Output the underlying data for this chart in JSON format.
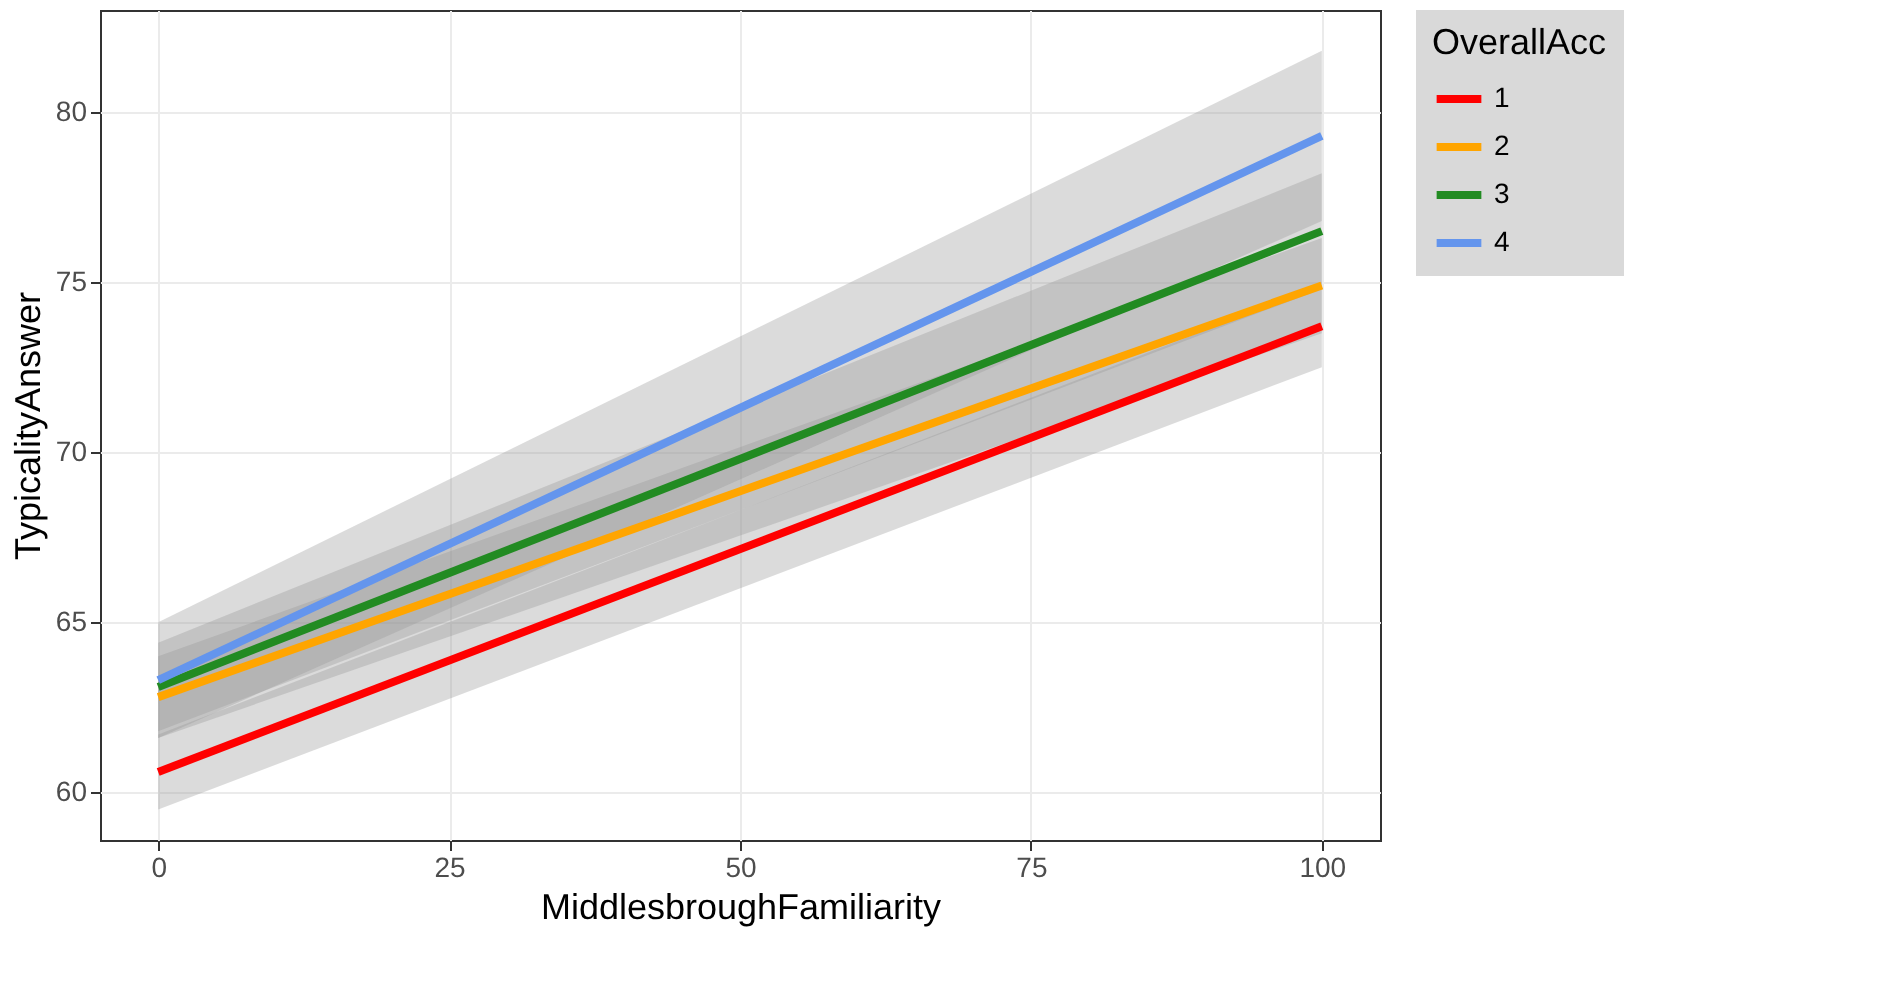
{
  "chart_data": {
    "type": "line",
    "xlabel": "MiddlesbroughFamiliarity",
    "ylabel": "TypicalityAnswer",
    "legend_title": "OverallAcc",
    "x": [
      0,
      100
    ],
    "xlim": [
      -5,
      105
    ],
    "xticks": [
      0,
      25,
      50,
      75,
      100
    ],
    "ylim": [
      58.6,
      83
    ],
    "yticks": [
      60,
      65,
      70,
      75,
      80
    ],
    "grid": true,
    "legend": "right",
    "series": [
      {
        "name": "1",
        "color": "#ff0000",
        "values": [
          60.6,
          73.7
        ],
        "lower": [
          59.5,
          72.5
        ],
        "upper": [
          61.7,
          74.9
        ]
      },
      {
        "name": "2",
        "color": "#ffa500",
        "values": [
          62.8,
          74.9
        ],
        "lower": [
          61.6,
          73.5
        ],
        "upper": [
          64.0,
          76.3
        ]
      },
      {
        "name": "3",
        "color": "#228b22",
        "values": [
          63.1,
          76.5
        ],
        "lower": [
          61.8,
          74.8
        ],
        "upper": [
          64.4,
          78.2
        ]
      },
      {
        "name": "4",
        "color": "#6495ed",
        "values": [
          63.3,
          79.3
        ],
        "lower": [
          61.6,
          76.8
        ],
        "upper": [
          65.0,
          81.8
        ]
      }
    ]
  }
}
